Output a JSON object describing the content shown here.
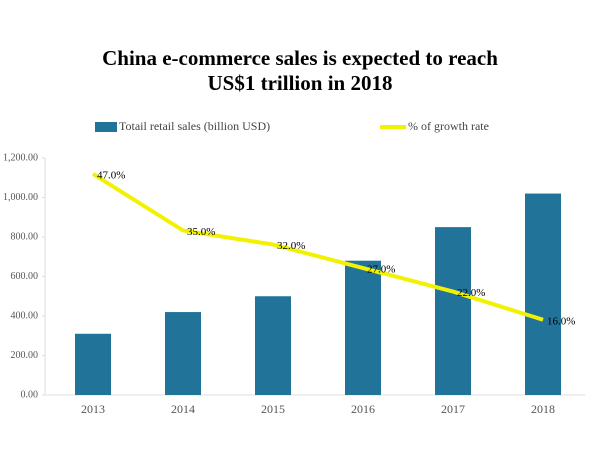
{
  "chart_data": {
    "type": "combo",
    "title": [
      "China e-commerce sales is expected to reach",
      "US$1 trillion in 2018"
    ],
    "categories": [
      "2013",
      "2014",
      "2015",
      "2016",
      "2017",
      "2018"
    ],
    "series": [
      {
        "name": "Totail retail sales (billion USD)",
        "type": "bar",
        "color": "#22739a",
        "values": [
          310,
          420,
          500,
          680,
          850,
          1020
        ]
      },
      {
        "name": "% of growth rate",
        "type": "line",
        "color": "#f2f200",
        "axis": "y2",
        "values": [
          47,
          35,
          32,
          27,
          22,
          16
        ],
        "value_labels": [
          "47.0%",
          "35.0%",
          "32.0%",
          "27.0%",
          "22.0%",
          "16.0%"
        ]
      }
    ],
    "ylim": [
      0,
      1200
    ],
    "yticks": [
      {
        "value": 0,
        "label": "0.00"
      },
      {
        "value": 200,
        "label": "200.00"
      },
      {
        "value": 400,
        "label": "400.00"
      },
      {
        "value": 600,
        "label": "600.00"
      },
      {
        "value": 800,
        "label": "800.00"
      },
      {
        "value": 1000,
        "label": "1,000.00"
      },
      {
        "value": 1200,
        "label": "1,200.00"
      }
    ],
    "y2lim": [
      0,
      50.4
    ],
    "grid": false
  }
}
